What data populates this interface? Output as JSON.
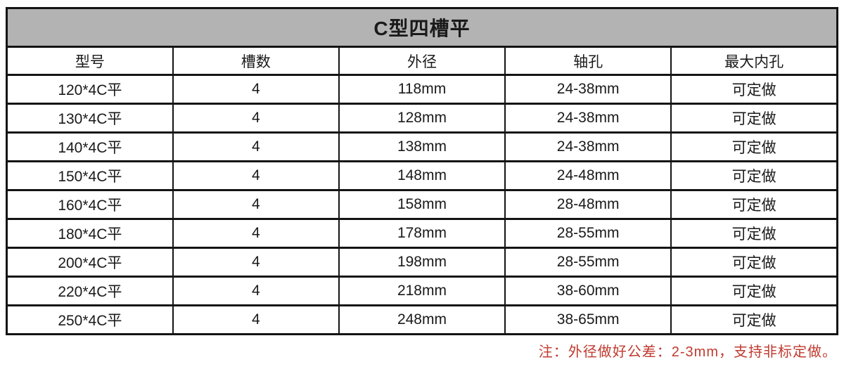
{
  "table": {
    "title": "C型四槽平",
    "columns": [
      "型号",
      "槽数",
      "外径",
      "轴孔",
      "最大内孔"
    ],
    "rows": [
      [
        "120*4C平",
        "4",
        "118mm",
        "24-38mm",
        "可定做"
      ],
      [
        "130*4C平",
        "4",
        "128mm",
        "24-38mm",
        "可定做"
      ],
      [
        "140*4C平",
        "4",
        "138mm",
        "24-38mm",
        "可定做"
      ],
      [
        "150*4C平",
        "4",
        "148mm",
        "24-48mm",
        "可定做"
      ],
      [
        "160*4C平",
        "4",
        "158mm",
        "28-48mm",
        "可定做"
      ],
      [
        "180*4C平",
        "4",
        "178mm",
        "28-55mm",
        "可定做"
      ],
      [
        "200*4C平",
        "4",
        "198mm",
        "28-55mm",
        "可定做"
      ],
      [
        "220*4C平",
        "4",
        "218mm",
        "38-60mm",
        "可定做"
      ],
      [
        "250*4C平",
        "4",
        "248mm",
        "38-65mm",
        "可定做"
      ]
    ]
  },
  "note": "注：外径做好公差：2-3mm，支持非标定做。",
  "colors": {
    "title_bg": "#b3b3b3",
    "border": "#141414",
    "note_red": "#c03a2f"
  }
}
